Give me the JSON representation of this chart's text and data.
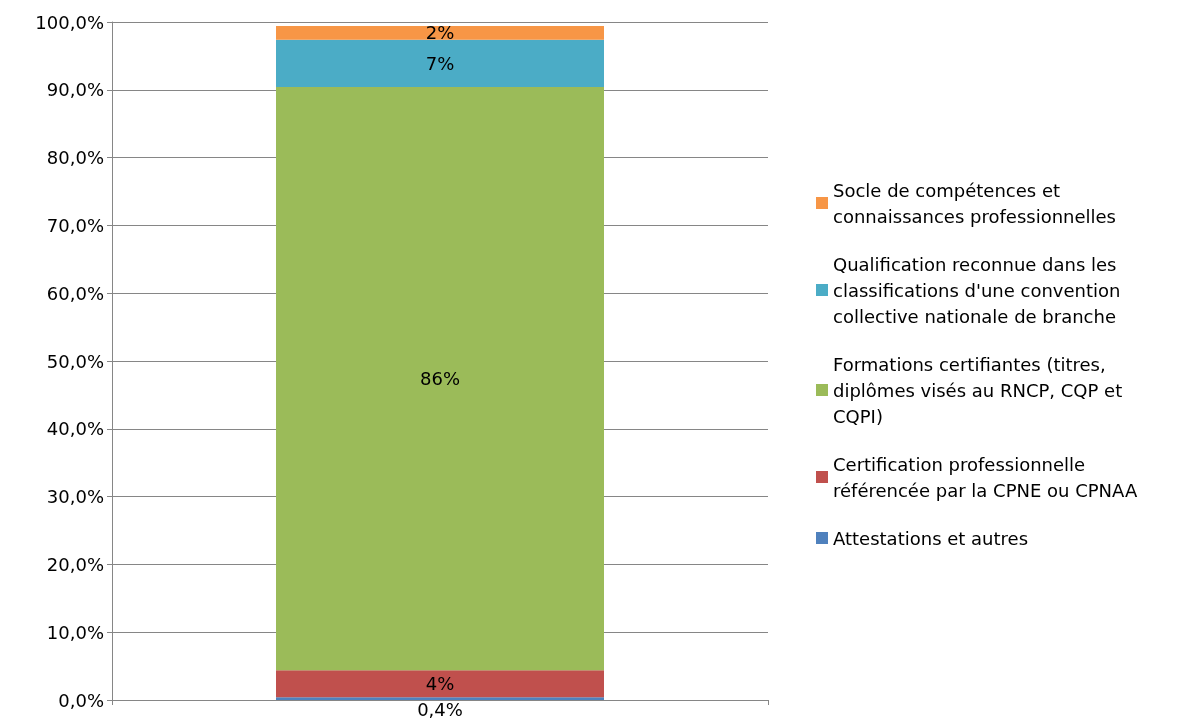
{
  "chart_data": {
    "type": "bar",
    "stacked": true,
    "categories": [
      null
    ],
    "series": [
      {
        "name": "Attestations et autres",
        "color": "#4f81bd",
        "values": [
          0.4
        ],
        "value_labels": [
          "0,4%"
        ]
      },
      {
        "name": "Certification professionnelle référencée par la CPNE ou CPNAA",
        "color": "#c0504d",
        "values": [
          4
        ],
        "value_labels": [
          "4%"
        ]
      },
      {
        "name": "Formations certifiantes (titres, diplômes visés au RNCP, CQP et CQPI)",
        "color": "#9bbb59",
        "values": [
          86
        ],
        "value_labels": [
          "86%"
        ]
      },
      {
        "name": "Qualification reconnue dans les classifications d'une convention collective nationale de branche",
        "color": "#4bacc6",
        "values": [
          7
        ],
        "value_labels": [
          "7%"
        ]
      },
      {
        "name": "Socle de compétences et connaissances professionnelles",
        "color": "#f79646",
        "values": [
          2
        ],
        "value_labels": [
          "2%"
        ]
      }
    ],
    "ylim": [
      0,
      100
    ],
    "yticks": [
      {
        "value": 0,
        "label": "0,0%"
      },
      {
        "value": 10,
        "label": "10,0%"
      },
      {
        "value": 20,
        "label": "20,0%"
      },
      {
        "value": 30,
        "label": "30,0%"
      },
      {
        "value": 40,
        "label": "40,0%"
      },
      {
        "value": 50,
        "label": "50,0%"
      },
      {
        "value": 60,
        "label": "60,0%"
      },
      {
        "value": 70,
        "label": "70,0%"
      },
      {
        "value": 80,
        "label": "80,0%"
      },
      {
        "value": 90,
        "label": "90,0%"
      },
      {
        "value": 100,
        "label": "100,0%"
      }
    ],
    "grid": "y",
    "legend": "right"
  }
}
